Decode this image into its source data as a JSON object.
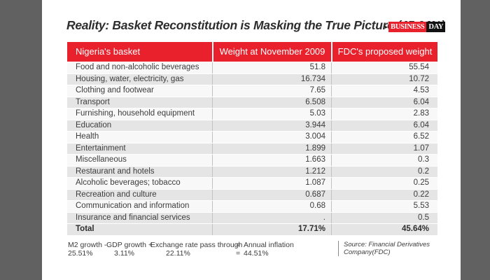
{
  "title": "Reality: Basket Reconstitution is Masking the True Picture (45.64%)",
  "logo": {
    "arrow": "▸",
    "part1": "BUSINESS",
    "part2": "DAY"
  },
  "table": {
    "headers": [
      "Nigeria's basket",
      "Weight at November 2009",
      "FDC's proposed weight"
    ],
    "rows": [
      [
        "Food and non-alcoholic beverages",
        "51.8",
        "55.54"
      ],
      [
        "Housing, water, electricity, gas",
        "16.734",
        "10.72"
      ],
      [
        "Clothing and footwear",
        "7.65",
        "4.53"
      ],
      [
        "Transport",
        "6.508",
        "6.04"
      ],
      [
        "Furnishing, household equipment",
        "5.03",
        "2.83"
      ],
      [
        "Education",
        "3.944",
        "6.04"
      ],
      [
        "Health",
        "3.004",
        "6.52"
      ],
      [
        "Entertainment",
        "1.899",
        "1.07"
      ],
      [
        "Miscellaneous",
        "1.663",
        "0.3"
      ],
      [
        "Restaurant and hotels",
        "1.212",
        "0.2"
      ],
      [
        "Alcoholic beverages; tobacco",
        "1.087",
        "0.25"
      ],
      [
        "Recreation and culture",
        "0.687",
        "0.22"
      ],
      [
        "Communication and information",
        "0.68",
        "5.53"
      ],
      [
        "Insurance and financial services",
        ".",
        "0.5"
      ]
    ],
    "total_row": [
      "Total",
      "17.71%",
      "45.64%"
    ]
  },
  "footnote": {
    "formula": [
      {
        "label": "M2 growth -",
        "value": "25.51%"
      },
      {
        "label": "GDP growth +",
        "value": "3.11%"
      },
      {
        "label": "Exchange rate pass through",
        "value": "22.11%"
      },
      {
        "label": "=",
        "value": "="
      },
      {
        "label": "Annual inflation",
        "value": "44.51%"
      }
    ],
    "source_line1": "Source: Financial Derivatives",
    "source_line2": "Company(FDC)"
  },
  "colors": {
    "accent_red": "#e8212d",
    "panel_gray": "#616161",
    "row_odd": "#e5e5e5",
    "row_even": "#f8f8f8",
    "logo_black": "#121212"
  },
  "chart_data": {
    "type": "table",
    "title": "Reality: Basket Reconstitution is Masking the True Picture (45.64%)",
    "columns": [
      "Nigeria's basket",
      "Weight at November 2009",
      "FDC's proposed weight"
    ],
    "rows": [
      {
        "category": "Food and non-alcoholic beverages",
        "weight_nov_2009": 51.8,
        "fdc_proposed": 55.54
      },
      {
        "category": "Housing, water, electricity, gas",
        "weight_nov_2009": 16.734,
        "fdc_proposed": 10.72
      },
      {
        "category": "Clothing and footwear",
        "weight_nov_2009": 7.65,
        "fdc_proposed": 4.53
      },
      {
        "category": "Transport",
        "weight_nov_2009": 6.508,
        "fdc_proposed": 6.04
      },
      {
        "category": "Furnishing, household equipment",
        "weight_nov_2009": 5.03,
        "fdc_proposed": 2.83
      },
      {
        "category": "Education",
        "weight_nov_2009": 3.944,
        "fdc_proposed": 6.04
      },
      {
        "category": "Health",
        "weight_nov_2009": 3.004,
        "fdc_proposed": 6.52
      },
      {
        "category": "Entertainment",
        "weight_nov_2009": 1.899,
        "fdc_proposed": 1.07
      },
      {
        "category": "Miscellaneous",
        "weight_nov_2009": 1.663,
        "fdc_proposed": 0.3
      },
      {
        "category": "Restaurant and hotels",
        "weight_nov_2009": 1.212,
        "fdc_proposed": 0.2
      },
      {
        "category": "Alcoholic beverages; tobacco",
        "weight_nov_2009": 1.087,
        "fdc_proposed": 0.25
      },
      {
        "category": "Recreation and culture",
        "weight_nov_2009": 0.687,
        "fdc_proposed": 0.22
      },
      {
        "category": "Communication and information",
        "weight_nov_2009": 0.68,
        "fdc_proposed": 5.53
      },
      {
        "category": "Insurance and financial services",
        "weight_nov_2009": null,
        "fdc_proposed": 0.5
      },
      {
        "category": "Total",
        "weight_nov_2009": "17.71%",
        "fdc_proposed": "45.64%"
      }
    ],
    "annotation": "M2 growth - 25.51%, GDP growth + 3.11%, Exchange rate pass through 22.11% = Annual inflation 44.51%",
    "source": "Source: Financial Derivatives Company(FDC)"
  }
}
